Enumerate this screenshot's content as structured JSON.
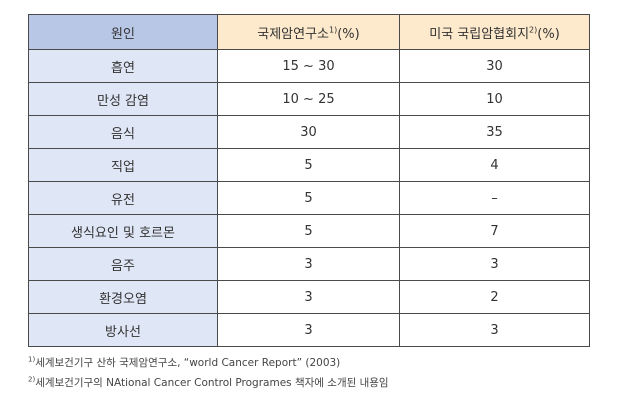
{
  "table": {
    "headers": [
      {
        "text": "원인",
        "sup": ""
      },
      {
        "text": "국제암연구소",
        "sup": "1)",
        "suffix": "(%)"
      },
      {
        "text": "미국 국립암협회지",
        "sup": "2)",
        "suffix": "(%)"
      }
    ],
    "rows": [
      {
        "cause": "흡연",
        "iarc": "15 ~ 30",
        "nci": "30"
      },
      {
        "cause": "만성 감염",
        "iarc": "10 ~ 25",
        "nci": "10"
      },
      {
        "cause": "음식",
        "iarc": "30",
        "nci": "35"
      },
      {
        "cause": "직업",
        "iarc": "5",
        "nci": "4"
      },
      {
        "cause": "유전",
        "iarc": "5",
        "nci": "–"
      },
      {
        "cause": "생식요인 및 호르몬",
        "iarc": "5",
        "nci": "7"
      },
      {
        "cause": "음주",
        "iarc": "3",
        "nci": "3"
      },
      {
        "cause": "환경오염",
        "iarc": "3",
        "nci": "2"
      },
      {
        "cause": "방사선",
        "iarc": "3",
        "nci": "3"
      }
    ]
  },
  "footnotes": [
    {
      "mark": "1)",
      "text": "세계보건기구 산하 국제암연구소, “world Cancer Report” (2003)"
    },
    {
      "mark": "2)",
      "text": "세계보건기구의 NAtional Cancer Control Programes 책자에 소개된 내용임"
    }
  ]
}
